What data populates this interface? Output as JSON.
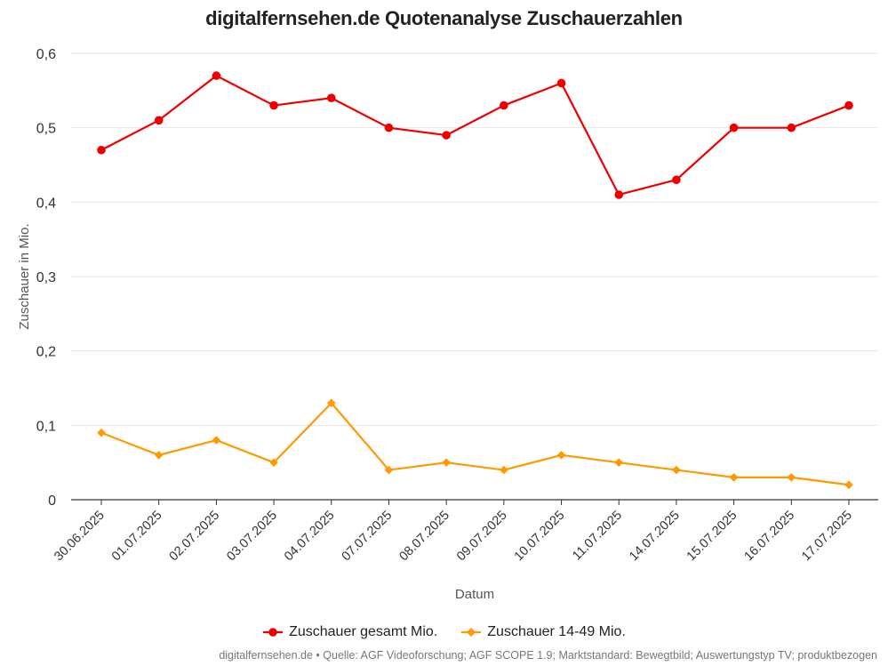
{
  "chart_data": {
    "type": "line",
    "title": "digitalfernsehen.de Quotenanalyse Zuschauerzahlen",
    "xlabel": "Datum",
    "ylabel": "Zuschauer in Mio.",
    "ylim": [
      0,
      0.6
    ],
    "yticks": [
      "0",
      "0,1",
      "0,2",
      "0,3",
      "0,4",
      "0,5",
      "0,6"
    ],
    "ytick_values": [
      0,
      0.1,
      0.2,
      0.3,
      0.4,
      0.5,
      0.6
    ],
    "grid": true,
    "legend_position": "bottom",
    "categories": [
      "30.06.2025",
      "01.07.2025",
      "02.07.2025",
      "03.07.2025",
      "04.07.2025",
      "07.07.2025",
      "08.07.2025",
      "09.07.2025",
      "10.07.2025",
      "11.07.2025",
      "14.07.2025",
      "15.07.2025",
      "16.07.2025",
      "17.07.2025"
    ],
    "series": [
      {
        "name": "Zuschauer gesamt Mio.",
        "color": "#ee0000",
        "marker": "circle",
        "values": [
          0.47,
          0.51,
          0.57,
          0.53,
          0.54,
          0.5,
          0.49,
          0.53,
          0.56,
          0.41,
          0.43,
          0.5,
          0.5,
          0.53
        ]
      },
      {
        "name": "Zuschauer 14-49 Mio.",
        "color": "#ff9900",
        "marker": "diamond",
        "values": [
          0.09,
          0.06,
          0.08,
          0.05,
          0.13,
          0.04,
          0.05,
          0.04,
          0.06,
          0.05,
          0.04,
          0.03,
          0.03,
          0.02
        ]
      }
    ]
  },
  "source_text": "digitalfernsehen.de • Quelle: AGF Videoforschung; AGF SCOPE 1.9; Marktstandard: Bewegtbild; Auswertungstyp TV; produktbezogen"
}
